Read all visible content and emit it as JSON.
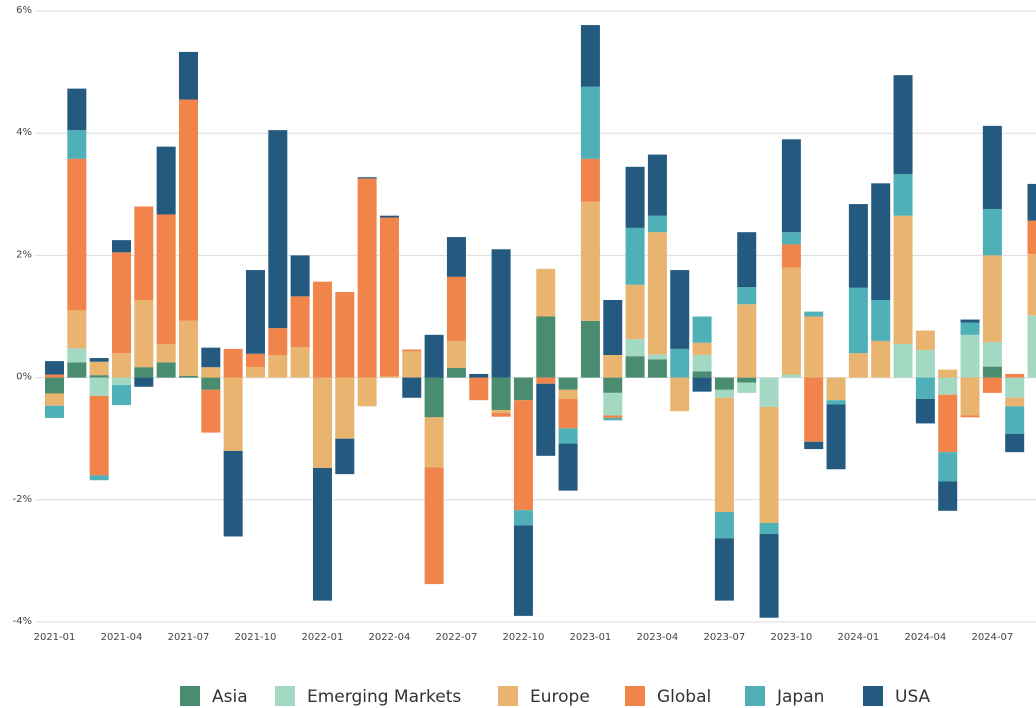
{
  "chart_data": {
    "type": "bar",
    "stacked": true,
    "categories": [
      "2021-01",
      null,
      null,
      "2021-04",
      null,
      null,
      "2021-07",
      null,
      null,
      "2021-10",
      null,
      null,
      "2022-01",
      null,
      null,
      "2022-04",
      null,
      null,
      "2022-07",
      null,
      null,
      "2022-10",
      null,
      null,
      "2023-01",
      null,
      null,
      "2023-04",
      null,
      null,
      "2023-07",
      null,
      null,
      "2023-10",
      null,
      null,
      "2024-01",
      null,
      null,
      "2024-04",
      null,
      null,
      "2024-07",
      null,
      null
    ],
    "series": [
      {
        "name": "Asia",
        "color": "#4a8c6f",
        "values": [
          -0.26,
          0.25,
          0.04,
          0,
          0.17,
          0.25,
          0.03,
          -0.2,
          0,
          0,
          0,
          0,
          0,
          0,
          0,
          0,
          0,
          -0.65,
          0.16,
          0,
          -0.53,
          -0.37,
          1.0,
          -0.2,
          0.93,
          -0.25,
          0.35,
          0.3,
          0,
          0.1,
          -0.2,
          -0.08,
          0,
          0,
          0,
          0,
          0,
          0,
          0,
          0,
          0,
          0,
          0.18,
          0,
          0
        ]
      },
      {
        "name": "Emerging Markets",
        "color": "#a3d9c2",
        "values": [
          0,
          0.23,
          -0.3,
          -0.12,
          0,
          0,
          0,
          0,
          0,
          0,
          0,
          0,
          0,
          0,
          0,
          0,
          0,
          0,
          0,
          0,
          0,
          0,
          0,
          0,
          0,
          -0.37,
          0.28,
          0.08,
          0,
          0.27,
          -0.13,
          -0.17,
          -0.48,
          0.05,
          0,
          0,
          0,
          0,
          0.55,
          0.45,
          -0.28,
          0.7,
          0.4,
          -0.33,
          1.02
        ]
      },
      {
        "name": "Europe",
        "color": "#e8b46f",
        "values": [
          -0.2,
          0.62,
          0.22,
          0.4,
          1.1,
          0.3,
          0.9,
          0.17,
          -1.2,
          0.17,
          0.37,
          0.5,
          -1.48,
          -1.0,
          -0.47,
          0.02,
          0.43,
          -0.82,
          0.44,
          0,
          -0.05,
          0,
          0.78,
          -0.15,
          1.95,
          0.37,
          0.89,
          2.0,
          -0.55,
          0.2,
          -1.87,
          1.2,
          -1.9,
          1.75,
          1.0,
          -0.37,
          0.4,
          0.6,
          2.1,
          0.32,
          0.13,
          -0.62,
          1.42,
          -0.14,
          1.0
        ]
      },
      {
        "name": "Global",
        "color": "#f0844a",
        "values": [
          0.05,
          2.48,
          -1.3,
          1.65,
          1.53,
          2.12,
          3.62,
          -0.7,
          0.47,
          0.22,
          0.44,
          0.83,
          1.57,
          1.4,
          3.26,
          2.6,
          0.03,
          -1.91,
          1.05,
          -0.37,
          -0.06,
          -1.8,
          -0.1,
          -0.48,
          0.7,
          -0.04,
          0,
          0,
          0,
          0,
          0,
          0,
          0,
          0.38,
          -1.05,
          0,
          0,
          0,
          0,
          0,
          -0.94,
          -0.03,
          -0.25,
          0.06,
          0.55
        ]
      },
      {
        "name": "Japan",
        "color": "#4fb0b8",
        "values": [
          -0.2,
          0.47,
          -0.08,
          -0.33,
          0,
          0,
          0,
          0,
          0,
          0,
          0,
          0,
          0,
          0,
          0,
          0,
          0,
          0,
          0,
          0,
          0,
          -0.25,
          0,
          -0.25,
          1.18,
          -0.04,
          0.93,
          0.27,
          0.47,
          0.43,
          -0.43,
          0.28,
          -0.18,
          0.2,
          0.08,
          -0.07,
          1.07,
          0.67,
          0.68,
          -0.35,
          -0.48,
          0.2,
          0.76,
          -0.45,
          0
        ]
      },
      {
        "name": "USA",
        "color": "#245a80",
        "values": [
          0.22,
          0.68,
          0.06,
          0.2,
          -0.15,
          1.11,
          0.78,
          0.32,
          -1.4,
          1.37,
          3.24,
          0.67,
          -2.17,
          -0.58,
          0.02,
          0.03,
          -0.33,
          0.7,
          0.65,
          0.06,
          2.1,
          -1.48,
          -1.18,
          -0.77,
          1.01,
          0.9,
          1.0,
          1.0,
          1.29,
          -0.23,
          -1.02,
          0.9,
          -1.37,
          1.52,
          -0.12,
          -1.06,
          1.37,
          1.91,
          1.62,
          -0.4,
          -0.48,
          0.05,
          1.36,
          -0.3,
          0.6
        ]
      }
    ],
    "ylim": [
      -4,
      6
    ],
    "yticks": [
      {
        "value": -4,
        "label": "-4%"
      },
      {
        "value": -2,
        "label": "-2%"
      },
      {
        "value": 0,
        "label": "0%"
      },
      {
        "value": 2,
        "label": "2%"
      },
      {
        "value": 4,
        "label": "4%"
      },
      {
        "value": 6,
        "label": "6%"
      }
    ],
    "grid": true,
    "legend": "bottom"
  }
}
